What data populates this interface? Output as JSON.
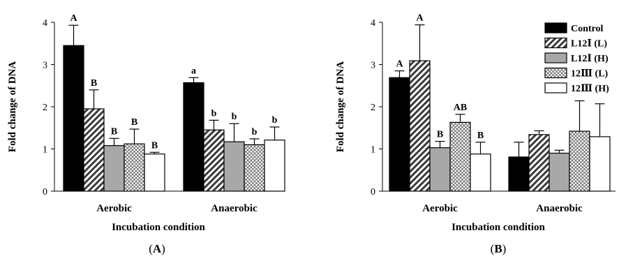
{
  "series_styles": [
    {
      "fill": "#000000",
      "pattern": "solid"
    },
    {
      "fill": "#ffffff",
      "pattern": "diagonal"
    },
    {
      "fill": "#a8a8a8",
      "pattern": "solid"
    },
    {
      "fill": "#ffffff",
      "pattern": "crosshatch"
    },
    {
      "fill": "#ffffff",
      "pattern": "solid"
    }
  ],
  "chart_data": [
    {
      "type": "bar",
      "panel_label": "(A)",
      "xlabel": "Incubation condition",
      "ylabel": "Fold change of DNA",
      "ylim": [
        0,
        4
      ],
      "yticks": [
        "0",
        "1",
        "2",
        "3",
        "4"
      ],
      "categories": [
        "Aerobic",
        "Anaerobic"
      ],
      "legend": null,
      "series": [
        {
          "name": "Control",
          "values": [
            3.45,
            2.57
          ],
          "errors": [
            0.48,
            0.12
          ],
          "letters": [
            "A",
            "a"
          ]
        },
        {
          "name": "L12Ⅰ (L)",
          "values": [
            1.95,
            1.45
          ],
          "errors": [
            0.45,
            0.23
          ],
          "letters": [
            "B",
            "b"
          ]
        },
        {
          "name": "L12Ⅰ (H)",
          "values": [
            1.08,
            1.17
          ],
          "errors": [
            0.17,
            0.43
          ],
          "letters": [
            "B",
            "b"
          ]
        },
        {
          "name": "12Ⅲ (L)",
          "values": [
            1.12,
            1.1
          ],
          "errors": [
            0.35,
            0.14
          ],
          "letters": [
            "B",
            "b"
          ]
        },
        {
          "name": "12Ⅲ (H)",
          "values": [
            0.88,
            1.21
          ],
          "errors": [
            0.04,
            0.31
          ],
          "letters": [
            "B",
            "b"
          ]
        }
      ]
    },
    {
      "type": "bar",
      "panel_label": "(B)",
      "xlabel": "Incubation condition",
      "ylabel": "Fold change of DNA",
      "ylim": [
        0,
        4
      ],
      "yticks": [
        "0",
        "1",
        "2",
        "3",
        "4"
      ],
      "categories": [
        "Aerobic",
        "Anaerobic"
      ],
      "legend": "top-right",
      "series": [
        {
          "name": "Control",
          "values": [
            2.69,
            0.81
          ],
          "errors": [
            0.16,
            0.35
          ],
          "letters": [
            "A",
            ""
          ]
        },
        {
          "name": "L12Ⅰ (L)",
          "values": [
            3.09,
            1.34
          ],
          "errors": [
            0.85,
            0.09
          ],
          "letters": [
            "A",
            ""
          ]
        },
        {
          "name": "L12Ⅰ (H)",
          "values": [
            1.03,
            0.9
          ],
          "errors": [
            0.15,
            0.07
          ],
          "letters": [
            "B",
            ""
          ]
        },
        {
          "name": "12Ⅲ (L)",
          "values": [
            1.63,
            1.42
          ],
          "errors": [
            0.19,
            0.72
          ],
          "letters": [
            "AB",
            ""
          ]
        },
        {
          "name": "12Ⅲ (H)",
          "values": [
            0.88,
            1.29
          ],
          "errors": [
            0.28,
            0.78
          ],
          "letters": [
            "B",
            ""
          ]
        }
      ]
    }
  ]
}
